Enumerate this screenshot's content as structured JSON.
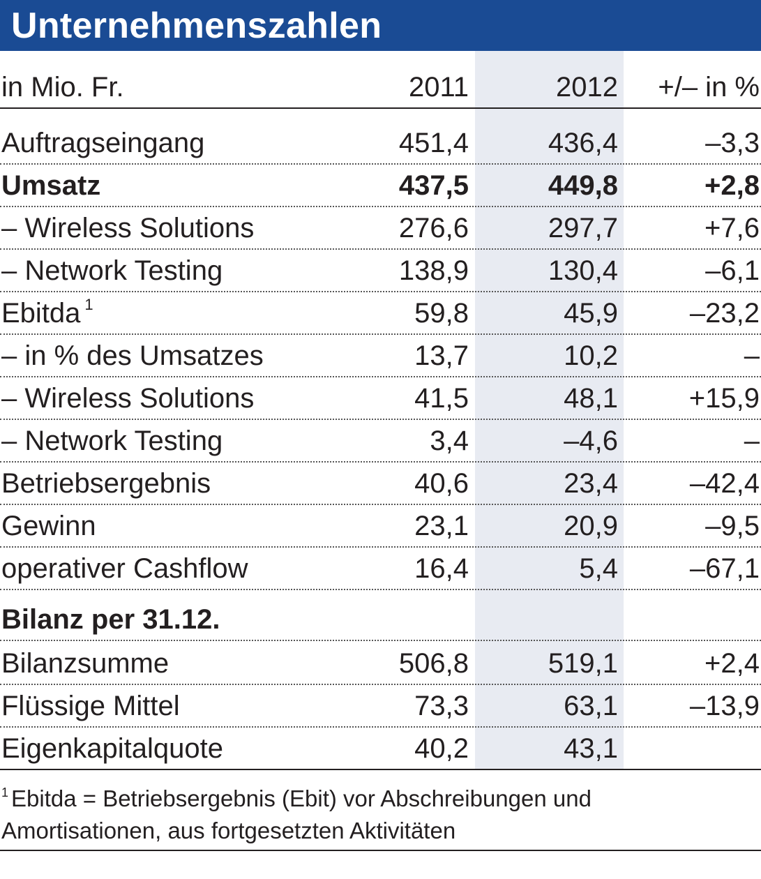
{
  "title": "Unternehmenszahlen",
  "chart_data": {
    "type": "table",
    "columns": [
      "in Mio. Fr.",
      "2011",
      "2012",
      "+/– in %"
    ],
    "rows": [
      {
        "label": "Auftragseingang",
        "v2011": "451,4",
        "v2012": "436,4",
        "change": "–3,3"
      },
      {
        "label": "Umsatz",
        "v2011": "437,5",
        "v2012": "449,8",
        "change": "+2,8",
        "bold": true
      },
      {
        "label": "– Wireless Solutions",
        "v2011": "276,6",
        "v2012": "297,7",
        "change": "+7,6"
      },
      {
        "label": "– Network Testing",
        "v2011": "138,9",
        "v2012": "130,4",
        "change": "–6,1"
      },
      {
        "label": "Ebitda",
        "sup": "1",
        "v2011": "59,8",
        "v2012": "45,9",
        "change": "–23,2"
      },
      {
        "label": "– in % des Umsatzes",
        "v2011": "13,7",
        "v2012": "10,2",
        "change": "–"
      },
      {
        "label": "– Wireless Solutions",
        "v2011": "41,5",
        "v2012": "48,1",
        "change": "+15,9"
      },
      {
        "label": "– Network Testing",
        "v2011": "3,4",
        "v2012": "–4,6",
        "change": "–"
      },
      {
        "label": "Betriebsergebnis",
        "v2011": "40,6",
        "v2012": "23,4",
        "change": "–42,4"
      },
      {
        "label": "Gewinn",
        "v2011": "23,1",
        "v2012": "20,9",
        "change": "–9,5"
      },
      {
        "label": "operativer Cashflow",
        "v2011": "16,4",
        "v2012": "5,4",
        "change": "–67,1"
      }
    ],
    "section_title": "Bilanz per 31.12.",
    "section_rows": [
      {
        "label": "Bilanzsumme",
        "v2011": "506,8",
        "v2012": "519,1",
        "change": "+2,4"
      },
      {
        "label": "Flüssige Mittel",
        "v2011": "73,3",
        "v2012": "63,1",
        "change": "–13,9"
      },
      {
        "label": "Eigenkapitalquote",
        "v2011": "40,2",
        "v2012": "43,1",
        "change": ""
      }
    ],
    "highlight_column": "2012",
    "highlight_color": "#e8ebf2"
  },
  "footnote": {
    "marker": "1",
    "line1": "Ebitda = Betriebsergebnis (Ebit) vor Abschreibungen und",
    "line2": "Amortisationen, aus fortgesetzten Aktivitäten"
  },
  "colors": {
    "header_bg": "#1a4b94",
    "header_text": "#ffffff",
    "text": "#231f20"
  }
}
